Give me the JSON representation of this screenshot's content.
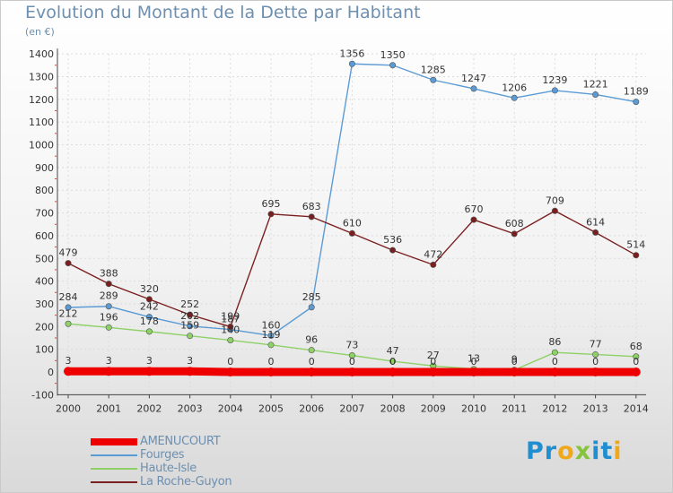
{
  "title": "Evolution du Montant de la Dette par Habitant",
  "subtitle": "(en €)",
  "logo": {
    "text": "Proxiti",
    "letters": [
      "P",
      "r",
      "o",
      "x",
      "i",
      "t",
      "i"
    ],
    "colors": [
      "#1f8fd1",
      "#1f8fd1",
      "#f0a81b",
      "#86c440",
      "#1f8fd1",
      "#1f8fd1",
      "#f0a81b"
    ]
  },
  "chart_data": {
    "type": "line",
    "title": "Evolution du Montant de la Dette par Habitant",
    "subtitle": "(en €)",
    "x": [
      "2000",
      "2001",
      "2002",
      "2003",
      "2004",
      "2005",
      "2006",
      "2007",
      "2008",
      "2009",
      "2010",
      "2011",
      "2012",
      "2013",
      "2014"
    ],
    "ylim": [
      -100,
      1400
    ],
    "yticks": [
      "-100",
      "0",
      "100",
      "200",
      "300",
      "400",
      "500",
      "600",
      "700",
      "800",
      "900",
      "1000",
      "1100",
      "1200",
      "1300",
      "1400"
    ],
    "grid": true,
    "legend_position": "bottom-left",
    "series": [
      {
        "name": "AMENUCOURT",
        "color": "#ee0000",
        "values": [
          3,
          3,
          3,
          3,
          0,
          0,
          0,
          0,
          0,
          0,
          0,
          0,
          0,
          0,
          0
        ],
        "labels": [
          "3",
          "3",
          "3",
          "3",
          "0",
          "0",
          "0",
          "0",
          "0",
          "0",
          "0",
          "0",
          "0",
          "0",
          "0"
        ]
      },
      {
        "name": "Fourges",
        "color": "#5b9bd5",
        "values": [
          284,
          289,
          242,
          202,
          187,
          160,
          285,
          1356,
          1350,
          1285,
          1247,
          1206,
          1239,
          1221,
          1189
        ],
        "labels": [
          "284",
          "289",
          "242",
          "202",
          "187",
          "160",
          "285",
          "1356",
          "1350",
          "1285",
          "1247",
          "1206",
          "1239",
          "1221",
          "1189"
        ]
      },
      {
        "name": "Haute-Isle",
        "color": "#8ed167",
        "values": [
          212,
          196,
          178,
          159,
          140,
          119,
          96,
          73,
          47,
          27,
          13,
          9,
          86,
          77,
          68
        ],
        "labels": [
          "212",
          "196",
          "178",
          "159",
          "140",
          "119",
          "96",
          "73",
          "47",
          "27",
          "13",
          "9",
          "86",
          "77",
          "68"
        ]
      },
      {
        "name": "La Roche-Guyon",
        "color": "#7a1f1f",
        "values": [
          479,
          388,
          320,
          252,
          199,
          695,
          683,
          610,
          536,
          472,
          670,
          608,
          709,
          614,
          514
        ],
        "labels": [
          "479",
          "388",
          "320",
          "252",
          "199",
          "695",
          "683",
          "610",
          "536",
          "472",
          "670",
          "608",
          "709",
          "614",
          "514"
        ]
      }
    ],
    "legend": [
      "AMENUCOURT",
      "Fourges",
      "Haute-Isle",
      "La Roche-Guyon"
    ]
  }
}
